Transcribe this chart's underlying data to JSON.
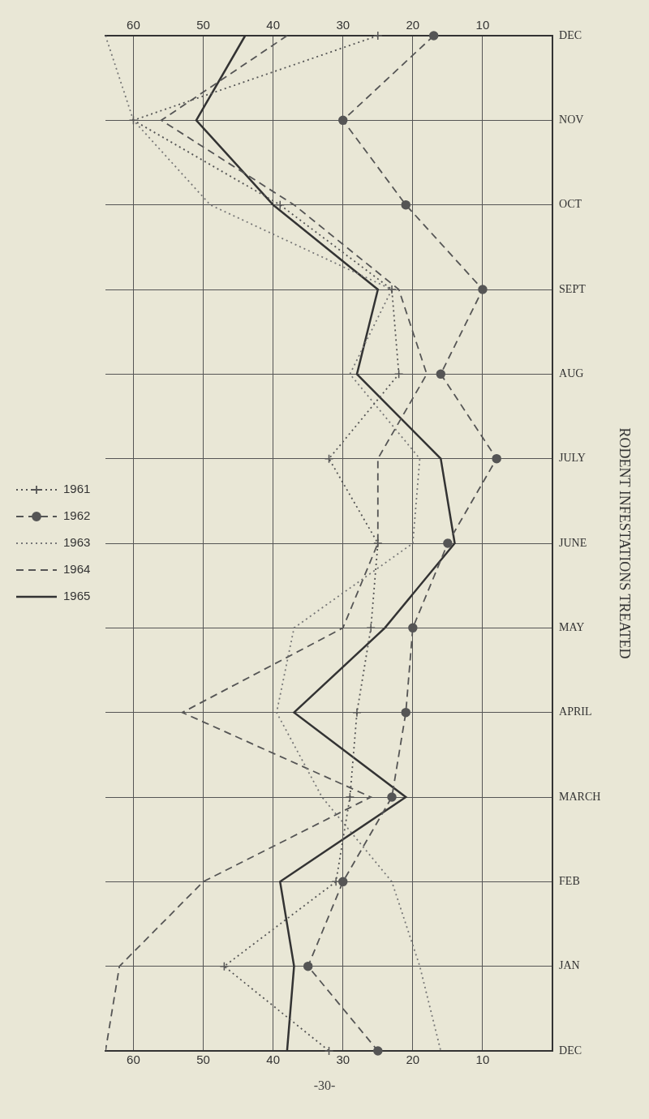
{
  "chart_data": {
    "type": "line",
    "orientation": "horizontal",
    "title": "RODENT INFESTATIONS TREATED",
    "categories": [
      "DEC",
      "NOV",
      "OCT",
      "SEPT",
      "AUG",
      "JULY",
      "JUNE",
      "MAY",
      "APRIL",
      "MARCH",
      "FEB",
      "JAN",
      "DEC"
    ],
    "series": [
      {
        "name": "1961",
        "color": "#555555",
        "line_style": "dotted",
        "marker": "cross",
        "values": [
          25,
          60,
          39,
          23,
          22,
          32,
          25,
          26,
          28,
          29,
          31,
          47,
          32
        ]
      },
      {
        "name": "1962",
        "color": "#555555",
        "line_style": "dashed",
        "marker": "circle",
        "values": [
          17,
          30,
          21,
          10,
          16,
          8,
          15,
          20,
          21,
          23,
          30,
          35,
          25
        ]
      },
      {
        "name": "1963",
        "color": "#777777",
        "line_style": "dotted",
        "marker": "none",
        "values": [
          64,
          60,
          49,
          23,
          29,
          19,
          20,
          37,
          39.5,
          33,
          23,
          19,
          16
        ]
      },
      {
        "name": "1964",
        "color": "#555555",
        "line_style": "dashed",
        "marker": "none",
        "values": [
          38,
          56,
          37,
          22,
          18,
          25,
          25,
          30,
          53,
          26,
          50,
          62,
          64
        ]
      },
      {
        "name": "1965",
        "color": "#333333",
        "line_style": "solid",
        "marker": "none",
        "values": [
          44,
          51,
          40,
          25,
          28,
          16,
          14,
          24,
          37,
          21,
          39,
          37,
          38
        ]
      }
    ],
    "xlim": [
      64,
      0
    ],
    "xticks": [
      60,
      50,
      40,
      30,
      20,
      10
    ],
    "x2lim": [
      64,
      0
    ],
    "x2ticks": [
      60,
      50,
      40,
      30,
      20,
      10
    ],
    "grid": true,
    "legend": "left",
    "annotations": [
      "-30-"
    ]
  }
}
